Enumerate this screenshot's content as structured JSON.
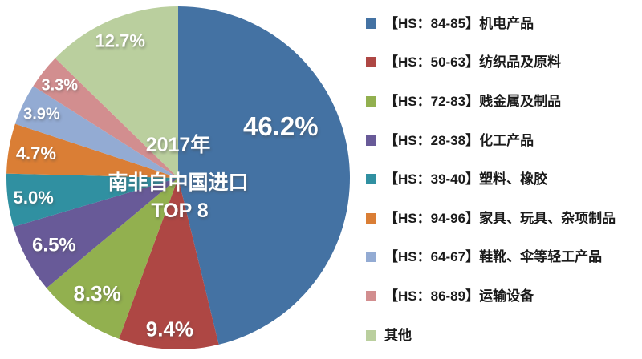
{
  "chart_data": {
    "type": "pie",
    "center_title_lines": [
      "2017年",
      "南非自中国进口",
      "TOP 8"
    ],
    "start_angle_deg": 0,
    "direction": "clockwise",
    "legend_position": "right",
    "background_color": "#ffffff",
    "label_color": "#ffffff",
    "slices": [
      {
        "legend": "【HS：84-85】机电产品",
        "value": 46.2,
        "pct_label": "46.2%",
        "color": "#4472a3"
      },
      {
        "legend": "【HS：50-63】纺织品及原料",
        "value": 9.4,
        "pct_label": "9.4%",
        "color": "#ae4744"
      },
      {
        "legend": "【HS：72-83】贱金属及制品",
        "value": 8.3,
        "pct_label": "8.3%",
        "color": "#92b04f"
      },
      {
        "legend": "【HS：28-38】化工产品",
        "value": 6.5,
        "pct_label": "6.5%",
        "color": "#685a98"
      },
      {
        "legend": "【HS：39-40】塑料、橡胶",
        "value": 5.0,
        "pct_label": "5.0%",
        "color": "#3090a1"
      },
      {
        "legend": "【HS：94-96】家具、玩具、杂项制品",
        "value": 4.7,
        "pct_label": "4.7%",
        "color": "#da7e35"
      },
      {
        "legend": "【HS：64-67】鞋靴、伞等轻工产品",
        "value": 3.9,
        "pct_label": "3.9%",
        "color": "#93abd3"
      },
      {
        "legend": "【HS：86-89】运输设备",
        "value": 3.3,
        "pct_label": "3.3%",
        "color": "#d28e8f"
      },
      {
        "legend": "其他",
        "value": 12.7,
        "pct_label": "12.7%",
        "color": "#bacf9e"
      }
    ]
  }
}
